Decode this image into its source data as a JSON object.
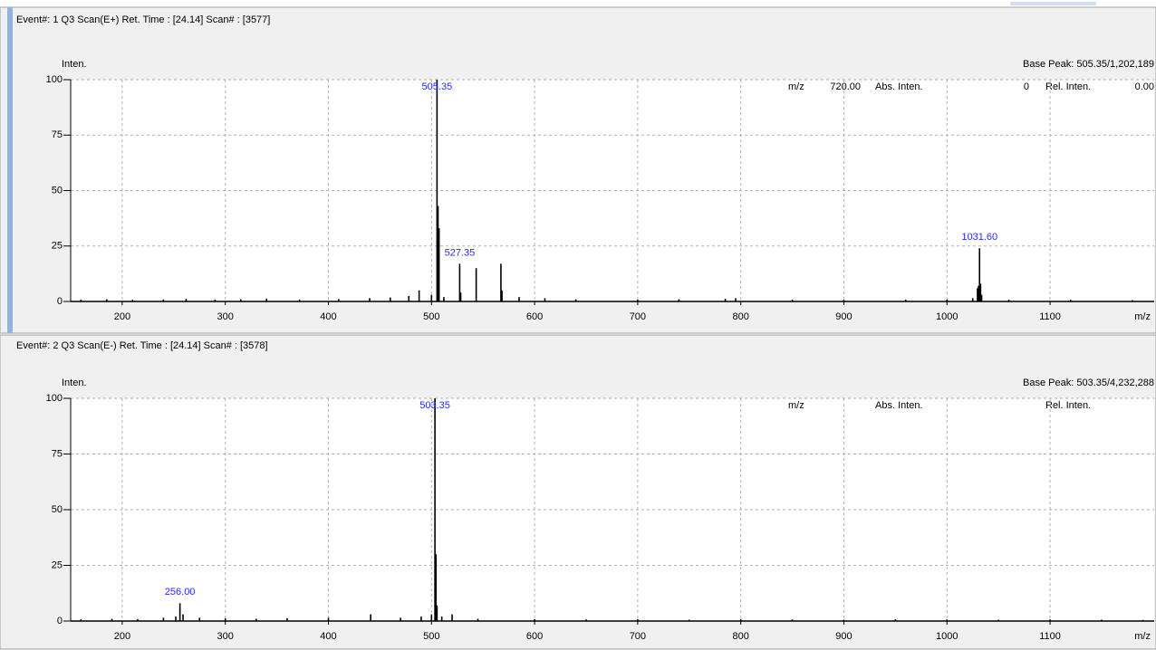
{
  "chart_data": [
    {
      "type": "stick",
      "header": "Event#: 1 Q3 Scan(E+)   Ret. Time : [24.14]   Scan# : [3577]",
      "ylabel": "Inten.",
      "xlabel": "m/z",
      "base_peak": "Base Peak: 505.35/1,202,189",
      "info": {
        "mz_label": "m/z",
        "mz": "720.00",
        "abs_label": "Abs. Inten.",
        "abs": "0",
        "rel_label": "Rel. Inten.",
        "rel": "0.00"
      },
      "x": [
        160,
        185,
        210,
        240,
        262,
        290,
        315,
        340,
        372,
        410,
        440,
        460,
        478,
        488,
        500,
        505.35,
        506.35,
        507.35,
        512,
        527.35,
        528.35,
        543.35,
        567.35,
        568.35,
        585,
        610,
        640,
        700,
        740,
        785,
        795,
        850,
        900,
        960,
        1000,
        1025,
        1029.6,
        1030.6,
        1031.6,
        1032.6,
        1033.6,
        1060,
        1120,
        1180
      ],
      "values": [
        0.8,
        1,
        0.7,
        0.9,
        1.2,
        0.8,
        1,
        1.3,
        0.9,
        1.1,
        1.5,
        1.8,
        2.5,
        5,
        3,
        100,
        43,
        33,
        2,
        17,
        4,
        15,
        17,
        5,
        2,
        1.5,
        1,
        0.8,
        1,
        1.2,
        1.5,
        0.8,
        0.7,
        0.8,
        0.9,
        1.5,
        6,
        7,
        24,
        8,
        3,
        0.8,
        0.7,
        0.6
      ],
      "color": "#000000",
      "annotations": [
        {
          "label": "505.35",
          "x": 505.35,
          "y": 100
        },
        {
          "label": "527.35",
          "x": 527.35,
          "y": 17
        },
        {
          "label": "1031.60",
          "x": 1031.6,
          "y": 24
        }
      ],
      "xlim": [
        150,
        1201
      ],
      "xticks": [
        200,
        300,
        400,
        500,
        600,
        700,
        800,
        900,
        1000,
        1100
      ],
      "ylim": [
        0,
        100
      ],
      "yticks": [
        0,
        25,
        50,
        75,
        100
      ],
      "grid": true
    },
    {
      "type": "stick",
      "header": "Event#: 2 Q3 Scan(E-)   Ret. Time : [24.14]   Scan# : [3578]",
      "ylabel": "Inten.",
      "xlabel": "m/z",
      "base_peak": "Base Peak: 503.35/4,232,288",
      "info": {
        "mz_label": "m/z",
        "abs_label": "Abs. Inten.",
        "rel_label": "Rel. Inten."
      },
      "x": [
        160,
        190,
        215,
        240,
        252,
        256,
        259,
        275,
        300,
        330,
        360,
        400,
        441,
        470,
        490,
        500,
        503.35,
        504.35,
        505.35,
        510,
        520,
        545,
        600,
        650,
        700,
        750,
        800,
        850,
        900,
        950,
        1000,
        1050,
        1100,
        1150,
        1190
      ],
      "values": [
        0.8,
        1,
        0.9,
        1.5,
        2,
        8,
        3,
        1.5,
        1.2,
        1,
        1.3,
        1.5,
        3,
        1.5,
        2,
        3,
        100,
        30,
        7,
        2,
        3,
        1,
        0.8,
        0.7,
        0.8,
        0.6,
        0.9,
        0.7,
        0.6,
        0.8,
        0.7,
        0.6,
        0.7,
        0.6,
        0.5
      ],
      "color": "#000000",
      "annotations": [
        {
          "label": "503.35",
          "x": 503.35,
          "y": 100
        },
        {
          "label": "256.00",
          "x": 256,
          "y": 8
        }
      ],
      "xlim": [
        150,
        1201
      ],
      "xticks": [
        200,
        300,
        400,
        500,
        600,
        700,
        800,
        900,
        1000,
        1100
      ],
      "ylim": [
        0,
        100
      ],
      "yticks": [
        0,
        25,
        50,
        75,
        100
      ],
      "grid": true
    }
  ]
}
